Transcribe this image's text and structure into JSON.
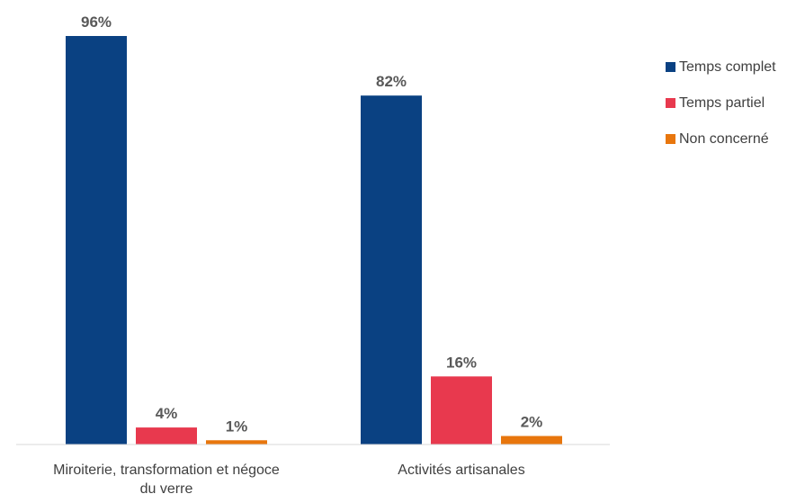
{
  "chart_data": {
    "type": "bar",
    "title": "",
    "xlabel": "",
    "ylabel": "",
    "ylim": [
      0,
      100
    ],
    "grid": false,
    "legend_position": "right",
    "categories": [
      [
        "Miroiterie, transformation et négoce",
        "du verre"
      ],
      [
        "Activités artisanales"
      ]
    ],
    "series": [
      {
        "name": "Temps complet",
        "color": "#0a4182",
        "values": [
          96,
          82
        ],
        "labels": [
          "96%",
          "82%"
        ]
      },
      {
        "name": "Temps partiel",
        "color": "#e8394e",
        "values": [
          4,
          16
        ],
        "labels": [
          "4%",
          "16%"
        ]
      },
      {
        "name": "Non concerné",
        "color": "#e8760d",
        "values": [
          1,
          2
        ],
        "labels": [
          "1%",
          "2%"
        ]
      }
    ]
  }
}
